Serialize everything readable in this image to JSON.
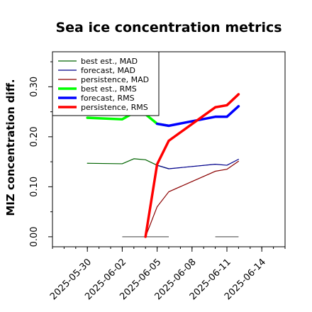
{
  "chart_data": {
    "type": "line",
    "title": "Sea ice concentration metrics",
    "ylabel": "MIZ concentration diff.",
    "xlabel": "",
    "ylim": [
      -0.02,
      0.37
    ],
    "yticks": [
      0.0,
      0.1,
      0.2,
      0.3
    ],
    "ytick_labels": [
      "0.00",
      "0.10",
      "0.20",
      "0.30"
    ],
    "xlim": [
      "2025-05-27",
      "2025-06-16"
    ],
    "xtick_labels": [
      "2025-05-30",
      "2025-06-02",
      "2025-06-05",
      "2025-06-08",
      "2025-06-11",
      "2025-06-14"
    ],
    "highlight_tick": "2025-06-05",
    "highlight_color": "#228b22",
    "grid": false,
    "legend_position": "top-left",
    "series": [
      {
        "name": "best est., MAD",
        "color": "#006400",
        "width": 1.2,
        "x": [
          "2025-05-30",
          "2025-06-02",
          "2025-06-03",
          "2025-06-04",
          "2025-06-05",
          "2025-06-06"
        ],
        "y": [
          0.147,
          0.146,
          0.156,
          0.154,
          0.143,
          0.136
        ]
      },
      {
        "name": "forecast, MAD",
        "color": "#00008b",
        "width": 1.2,
        "x": [
          "2025-06-05",
          "2025-06-06",
          "2025-06-10",
          "2025-06-11",
          "2025-06-12"
        ],
        "y": [
          0.143,
          0.136,
          0.145,
          0.143,
          0.155
        ]
      },
      {
        "name": "persistence, MAD",
        "color": "#8b0000",
        "width": 1.2,
        "x": [
          "2025-06-04",
          "2025-06-05",
          "2025-06-06",
          "2025-06-10",
          "2025-06-11",
          "2025-06-12"
        ],
        "y": [
          0.0,
          0.06,
          0.09,
          0.131,
          0.135,
          0.151
        ]
      },
      {
        "name": "best est., RMS",
        "color": "#00ff00",
        "width": 3.5,
        "x": [
          "2025-05-30",
          "2025-06-02",
          "2025-06-03",
          "2025-06-04",
          "2025-06-05",
          "2025-06-06"
        ],
        "y": [
          0.238,
          0.235,
          0.248,
          0.245,
          0.226,
          0.222
        ]
      },
      {
        "name": "forecast, RMS",
        "color": "#0000ff",
        "width": 3.5,
        "x": [
          "2025-06-05",
          "2025-06-06",
          "2025-06-10",
          "2025-06-11",
          "2025-06-12"
        ],
        "y": [
          0.226,
          0.222,
          0.24,
          0.24,
          0.261
        ]
      },
      {
        "name": "persistence, RMS",
        "color": "#ff0000",
        "width": 3.5,
        "x": [
          "2025-06-04",
          "2025-06-05",
          "2025-06-06",
          "2025-06-10",
          "2025-06-11",
          "2025-06-12"
        ],
        "y": [
          0.0,
          0.145,
          0.192,
          0.259,
          0.263,
          0.285
        ]
      }
    ],
    "connectors": [
      {
        "color": "#00008b",
        "width": 0.8,
        "x": [
          "2025-06-06",
          "2025-06-10"
        ],
        "y": [
          0.136,
          0.145
        ]
      },
      {
        "color": "#8b0000",
        "width": 0.8,
        "x": [
          "2025-06-06",
          "2025-06-10"
        ],
        "y": [
          0.09,
          0.131
        ]
      },
      {
        "color": "#0000ff",
        "width": 0.8,
        "x": [
          "2025-06-06",
          "2025-06-10"
        ],
        "y": [
          0.222,
          0.24
        ]
      },
      {
        "color": "#ff0000",
        "width": 0.8,
        "x": [
          "2025-06-06",
          "2025-06-10"
        ],
        "y": [
          0.192,
          0.259
        ]
      }
    ],
    "zero_segments": [
      {
        "color": "#7f7f7f",
        "x": [
          "2025-06-02",
          "2025-06-06"
        ],
        "y": 0.0
      },
      {
        "color": "#7f7f7f",
        "x": [
          "2025-06-10",
          "2025-06-12"
        ],
        "y": 0.0
      }
    ]
  }
}
